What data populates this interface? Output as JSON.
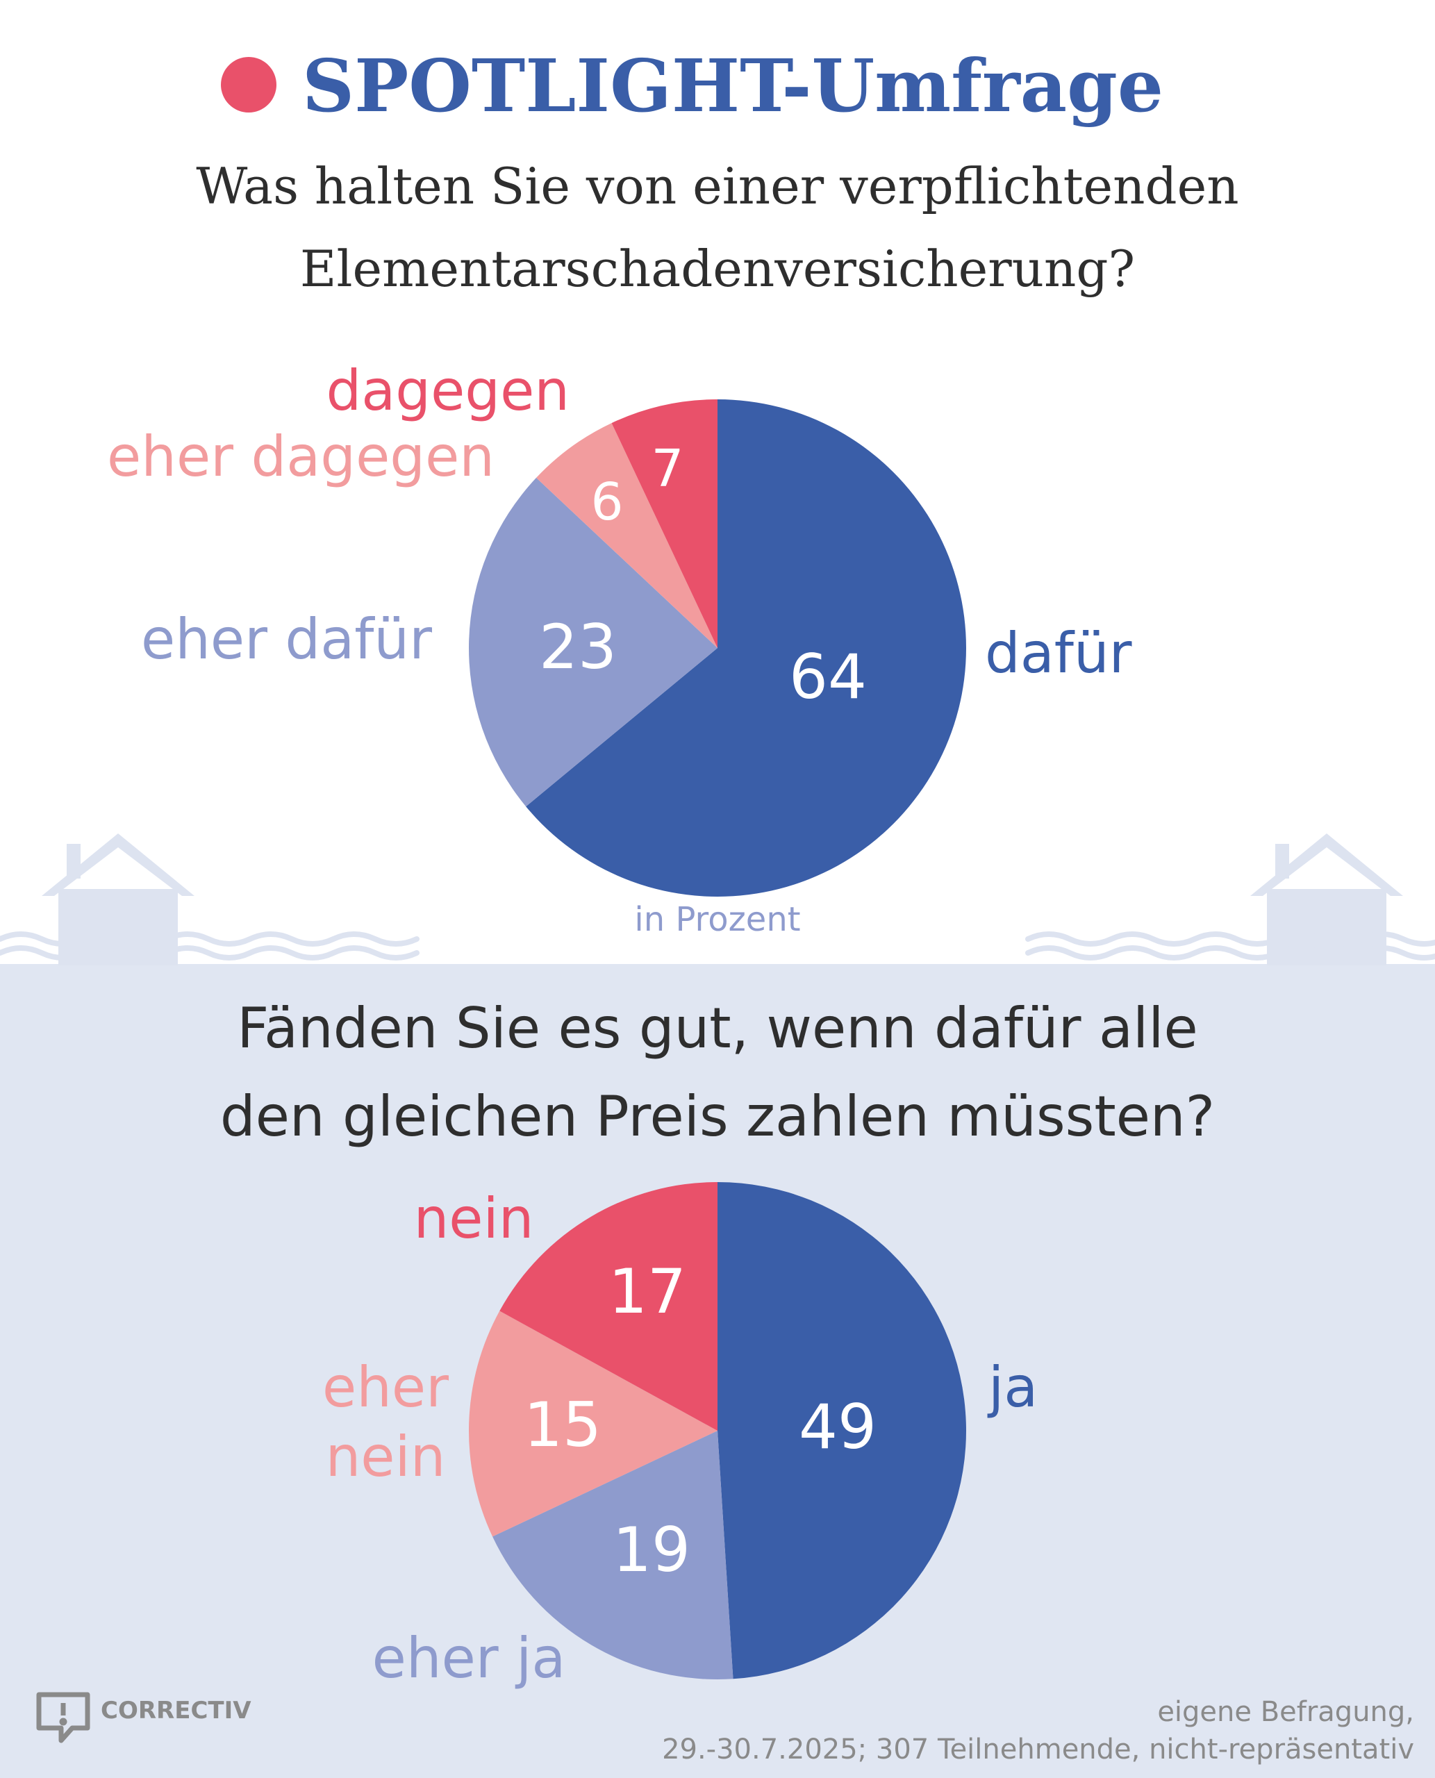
{
  "header": {
    "title": "SPOTLIGHT-Umfrage",
    "question_lines": [
      "Was halten Sie von einer verpflichtenden",
      "Elementarschadenversicherung?"
    ]
  },
  "chart_data": [
    {
      "type": "pie",
      "question": "Was halten Sie von einer verpflichtenden Elementarschadenversicherung?",
      "slices": [
        {
          "label": "dafür",
          "value": 64,
          "color": "#3a5ea8"
        },
        {
          "label": "eher dafür",
          "value": 23,
          "color": "#8e9bcd"
        },
        {
          "label": "eher dagegen",
          "value": 6,
          "color": "#f29c9e"
        },
        {
          "label": "dagegen",
          "value": 7,
          "color": "#e9516a"
        }
      ],
      "unit_note": "in Prozent"
    },
    {
      "type": "pie",
      "question": "Fänden Sie es gut, wenn dafür alle den gleichen Preis zahlen müssten?",
      "slices": [
        {
          "label": "ja",
          "value": 49,
          "color": "#3a5ea8"
        },
        {
          "label": "eher ja",
          "value": 19,
          "color": "#8e9bcd"
        },
        {
          "label": "eher nein",
          "value": 15,
          "color": "#f29c9e"
        },
        {
          "label": "nein",
          "value": 17,
          "color": "#e9516a"
        }
      ]
    }
  ],
  "second": {
    "question_lines": [
      "Fänden Sie es gut, wenn dafür alle",
      "den gleichen Preis zahlen müssten?"
    ],
    "eher_nein_lines": [
      "eher",
      "nein"
    ]
  },
  "footer": {
    "brand": "CORRECTIV",
    "source_lines": [
      "eigene Befragung,",
      "29.-30.7.2025; 307 Teilnehmende, nicht-repräsentativ"
    ]
  },
  "colors": {
    "title": "#3a5ea8",
    "text": "#2e2e2e",
    "bottom_bg": "#e0e6f2",
    "house": "#dde3f0",
    "red_dot": "#e9516a",
    "footer_text": "#8a8a8a"
  },
  "icons": [
    "red-dot-icon",
    "house-icon",
    "wave-icon",
    "correctiv-logo-icon"
  ]
}
